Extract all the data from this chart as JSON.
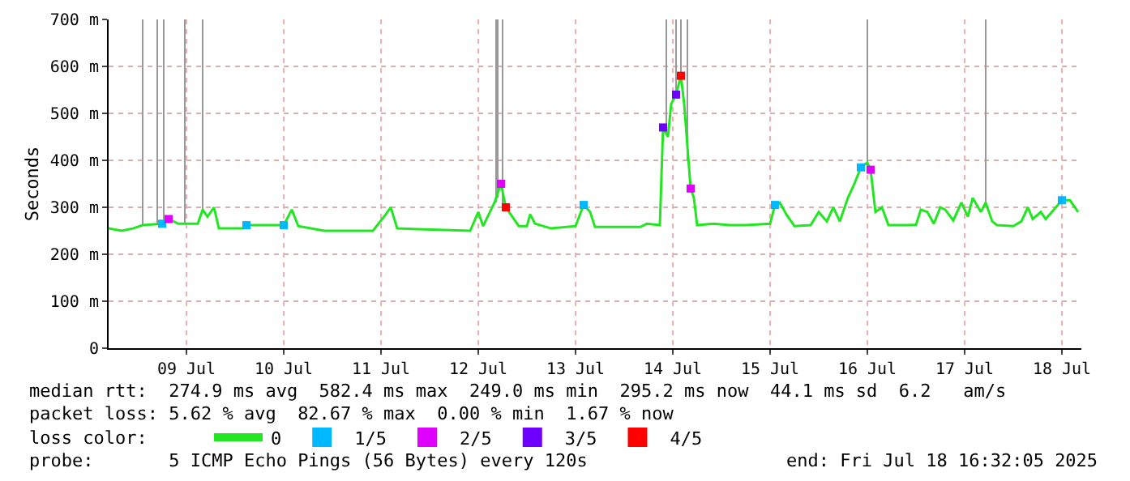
{
  "chart_data": {
    "type": "line",
    "ylabel": "Seconds",
    "xlim": [
      "2025-07-08T16:48",
      "2025-07-18T16:48"
    ],
    "xticks": [
      {
        "value": "2025-07-09T12:00",
        "label": "09 Jul"
      },
      {
        "value": "2025-07-10T12:00",
        "label": "10 Jul"
      },
      {
        "value": "2025-07-11T12:00",
        "label": "11 Jul"
      },
      {
        "value": "2025-07-12T12:00",
        "label": "12 Jul"
      },
      {
        "value": "2025-07-13T12:00",
        "label": "13 Jul"
      },
      {
        "value": "2025-07-14T12:00",
        "label": "14 Jul"
      },
      {
        "value": "2025-07-15T12:00",
        "label": "15 Jul"
      },
      {
        "value": "2025-07-16T12:00",
        "label": "16 Jul"
      },
      {
        "value": "2025-07-17T12:00",
        "label": "17 Jul"
      },
      {
        "value": "2025-07-18T12:00",
        "label": "18 Jul"
      }
    ],
    "ylim": [
      0,
      700
    ],
    "yticks": [
      0,
      {
        "value": 100,
        "label": "100 m"
      },
      {
        "value": 200,
        "label": "200 m"
      },
      {
        "value": 300,
        "label": "300 m"
      },
      {
        "value": 400,
        "label": "400 m"
      },
      {
        "value": 500,
        "label": "500 m"
      },
      {
        "value": 600,
        "label": "600 m"
      },
      {
        "value": 700,
        "label": "700 m"
      }
    ],
    "grid": true,
    "legend": "bottom",
    "legend_title": "loss color:",
    "series": [
      {
        "color": "#999999",
        "x": [
          "2025-07-09T01:12",
          "2025-07-09T01:12",
          null,
          "2025-07-09T04:48",
          "2025-07-09T04:48",
          null,
          "2025-07-09T06:24",
          "2025-07-09T06:24",
          null,
          "2025-07-09T11:36",
          "2025-07-09T11:36",
          null,
          "2025-07-09T16:00",
          "2025-07-09T16:00",
          null,
          "2025-07-12T16:24",
          "2025-07-12T16:24",
          null,
          "2025-07-12T16:48",
          "2025-07-12T16:48",
          null,
          "2025-07-12T18:00",
          "2025-07-12T18:00",
          null,
          "2025-07-14T10:24",
          "2025-07-14T10:24",
          null,
          "2025-07-14T12:48",
          "2025-07-14T12:48",
          null,
          "2025-07-14T14:00",
          "2025-07-14T14:00",
          null,
          "2025-07-14T15:36",
          "2025-07-14T15:36",
          null,
          "2025-07-16T12:00",
          "2025-07-16T12:00",
          null,
          "2025-07-17T17:12",
          "2025-07-17T17:12"
        ],
        "values": [
          262,
          700,
          null,
          265,
          700,
          null,
          265,
          700,
          null,
          265,
          700,
          null,
          295,
          700,
          null,
          310,
          700,
          null,
          320,
          700,
          null,
          300,
          700,
          null,
          460,
          700,
          null,
          540,
          700,
          null,
          580,
          700,
          null,
          400,
          700,
          null,
          395,
          700,
          null,
          310,
          700
        ]
      },
      {
        "name": "0",
        "color": "#22e622",
        "x": [
          "2025-07-08T16:48",
          "2025-07-08T20:00",
          "2025-07-08T22:48",
          "2025-07-09T01:12",
          "2025-07-09T06:00",
          "2025-07-09T07:36",
          "2025-07-09T10:00",
          "2025-07-09T14:48",
          "2025-07-09T16:00",
          "2025-07-09T17:12",
          "2025-07-09T18:48",
          "2025-07-09T20:00",
          "2025-07-10T02:00",
          "2025-07-10T02:48",
          "2025-07-10T12:00",
          "2025-07-10T14:00",
          "2025-07-10T15:36",
          "2025-07-10T22:00",
          "2025-07-11T10:00",
          "2025-07-11T13:12",
          "2025-07-11T14:24",
          "2025-07-11T16:00",
          "2025-07-12T10:00",
          "2025-07-12T12:00",
          "2025-07-12T13:12",
          "2025-07-12T16:00",
          "2025-07-12T17:36",
          "2025-07-12T18:48",
          "2025-07-12T20:24",
          "2025-07-12T22:00",
          "2025-07-13T00:00",
          "2025-07-13T00:48",
          "2025-07-13T02:00",
          "2025-07-13T06:00",
          "2025-07-13T12:00",
          "2025-07-13T14:00",
          "2025-07-13T15:36",
          "2025-07-13T16:48",
          "2025-07-14T04:00",
          "2025-07-14T05:36",
          "2025-07-14T08:48",
          "2025-07-14T09:36",
          "2025-07-14T10:48",
          "2025-07-14T11:36",
          "2025-07-14T12:48",
          "2025-07-14T14:00",
          "2025-07-14T14:48",
          "2025-07-14T16:24",
          "2025-07-14T17:12",
          "2025-07-14T18:00",
          "2025-07-14T22:00",
          "2025-07-15T02:00",
          "2025-07-15T06:00",
          "2025-07-15T12:00",
          "2025-07-15T13:12",
          "2025-07-15T14:24",
          "2025-07-15T16:00",
          "2025-07-15T18:00",
          "2025-07-15T22:00",
          "2025-07-16T00:00",
          "2025-07-16T02:00",
          "2025-07-16T03:36",
          "2025-07-16T05:12",
          "2025-07-16T07:12",
          "2025-07-16T08:48",
          "2025-07-16T10:24",
          "2025-07-16T12:00",
          "2025-07-16T12:48",
          "2025-07-16T14:00",
          "2025-07-16T15:36",
          "2025-07-16T17:12",
          "2025-07-16T22:00",
          "2025-07-17T00:00",
          "2025-07-17T01:12",
          "2025-07-17T02:48",
          "2025-07-17T04:24",
          "2025-07-17T06:00",
          "2025-07-17T07:12",
          "2025-07-17T09:12",
          "2025-07-17T11:12",
          "2025-07-17T12:48",
          "2025-07-17T14:00",
          "2025-07-17T16:00",
          "2025-07-17T17:12",
          "2025-07-17T18:48",
          "2025-07-17T20:00",
          "2025-07-18T00:00",
          "2025-07-18T02:00",
          "2025-07-18T03:36",
          "2025-07-18T04:48",
          "2025-07-18T06:48",
          "2025-07-18T08:00",
          "2025-07-18T10:00",
          "2025-07-18T12:00",
          "2025-07-18T14:00",
          "2025-07-18T16:00"
        ],
        "values": [
          255,
          250,
          255,
          262,
          265,
          275,
          265,
          265,
          295,
          280,
          300,
          255,
          255,
          262,
          262,
          295,
          260,
          250,
          250,
          285,
          300,
          255,
          250,
          290,
          260,
          310,
          350,
          300,
          280,
          260,
          260,
          285,
          265,
          255,
          260,
          305,
          290,
          258,
          258,
          265,
          262,
          470,
          450,
          520,
          540,
          580,
          520,
          340,
          320,
          262,
          265,
          262,
          262,
          265,
          305,
          310,
          285,
          260,
          262,
          290,
          270,
          300,
          270,
          320,
          350,
          385,
          395,
          380,
          290,
          300,
          262,
          262,
          263,
          295,
          290,
          265,
          300,
          295,
          272,
          310,
          280,
          320,
          290,
          310,
          270,
          262,
          260,
          270,
          300,
          275,
          290,
          275,
          295,
          315,
          315,
          290
        ]
      },
      {
        "name": "1/5",
        "type": "scatter",
        "marker": "square",
        "color": "#00b8ff",
        "x": [
          "2025-07-09T06:00",
          "2025-07-10T02:48",
          "2025-07-10T12:00",
          "2025-07-13T14:00",
          "2025-07-15T13:12",
          "2025-07-16T10:24",
          "2025-07-18T12:00"
        ],
        "values": [
          265,
          262,
          262,
          305,
          305,
          385,
          315
        ]
      },
      {
        "name": "2/5",
        "type": "scatter",
        "marker": "square",
        "color": "#e000ff",
        "x": [
          "2025-07-09T07:36",
          "2025-07-12T17:36",
          "2025-07-14T16:24",
          "2025-07-16T12:48"
        ],
        "values": [
          275,
          350,
          340,
          380
        ]
      },
      {
        "name": "3/5",
        "type": "scatter",
        "marker": "square",
        "color": "#6e00ff",
        "x": [
          "2025-07-14T09:36",
          "2025-07-14T12:48"
        ],
        "values": [
          470,
          540
        ]
      },
      {
        "name": "4/5",
        "type": "scatter",
        "marker": "square",
        "color": "#ff0000",
        "x": [
          "2025-07-12T18:48",
          "2025-07-14T14:00"
        ],
        "values": [
          300,
          580
        ]
      }
    ],
    "annotations": [
      "median rtt:  274.9 ms avg  582.4 ms max  249.0 ms min  295.2 ms now  44.1 ms sd  6.2   am/s",
      "packet loss: 5.62 % avg  82.67 % max  0.00 % min  1.67 % now",
      "probe:       5 ICMP Echo Pings (56 Bytes) every 120s",
      "end: Fri Jul 18 16:32:05 2025"
    ]
  }
}
